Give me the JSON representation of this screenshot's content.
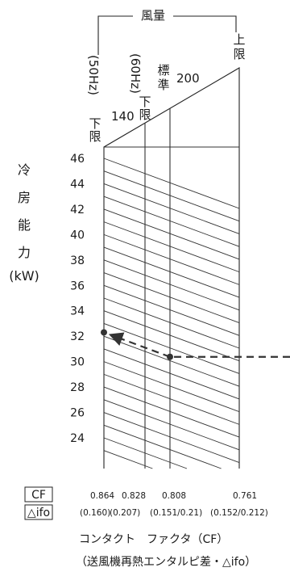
{
  "chart_data": {
    "type": "nomogram",
    "title": "",
    "y_axis": {
      "label_chars": [
        "冷",
        "房",
        "能",
        "力"
      ],
      "unit": "(kW)",
      "tick_labels": [
        "46",
        "44",
        "42",
        "40",
        "38",
        "36",
        "34",
        "32",
        "30",
        "28",
        "26",
        "24"
      ],
      "range": [
        23,
        46
      ]
    },
    "airflow": {
      "bracket_label": "風量",
      "labels": [
        {
          "text": "(50Hz)",
          "sub": "下限"
        },
        {
          "text": "(60Hz)",
          "sub": "下限"
        },
        {
          "text": "標準",
          "sub": ""
        },
        {
          "text": "上限",
          "sub": ""
        }
      ],
      "scale_values": [
        "140",
        "200"
      ]
    },
    "cf_key": {
      "cf": "CF",
      "delta": "△ifo"
    },
    "columns": [
      {
        "cf": "0.864",
        "ifo": "(0.160)"
      },
      {
        "cf": "0.828",
        "ifo": "(0.207)"
      },
      {
        "cf": "0.808",
        "ifo": "(0.151/0.21)"
      },
      {
        "cf": "0.761",
        "ifo": "(0.152/0.212)"
      }
    ],
    "example_reading": {
      "airflow": "標準",
      "cf": 0.808,
      "capacity_kW": 32.3
    },
    "caption": {
      "line1": "コンタクト　ファクタ（CF）",
      "line2": "（送風機再熱エンタルピ差・△ifo）"
    }
  }
}
